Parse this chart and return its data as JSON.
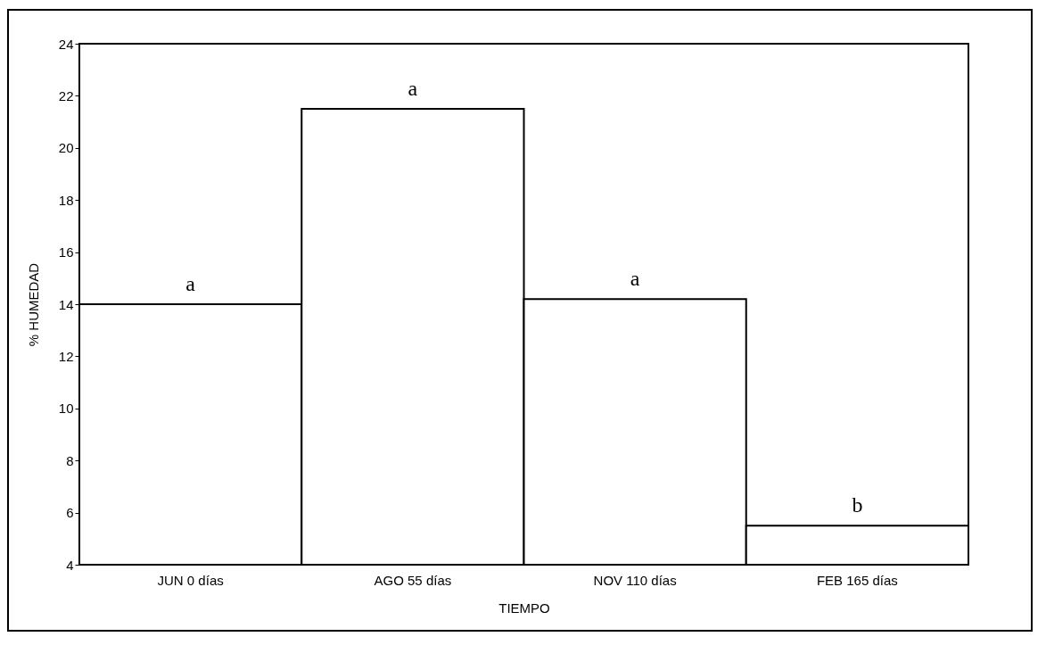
{
  "chart_data": {
    "type": "bar",
    "xlabel": "TIEMPO",
    "ylabel": "% HUMEDAD",
    "categories": [
      "JUN 0 días",
      "AGO 55 días",
      "NOV 110 días",
      "FEB 165 días"
    ],
    "values": [
      14.0,
      21.5,
      14.2,
      5.5
    ],
    "color": "#ffffff",
    "ylim": [
      4,
      24
    ],
    "yticks": [
      4,
      6,
      8,
      10,
      12,
      14,
      16,
      18,
      20,
      22,
      24
    ],
    "annotations": [
      {
        "text": "a",
        "x": "JUN 0 días",
        "y": 14.0
      },
      {
        "text": "a",
        "x": "AGO 55 días",
        "y": 21.5
      },
      {
        "text": "a",
        "x": "NOV 110 días",
        "y": 14.2
      },
      {
        "text": "b",
        "x": "FEB 165 días",
        "y": 5.5
      }
    ]
  }
}
